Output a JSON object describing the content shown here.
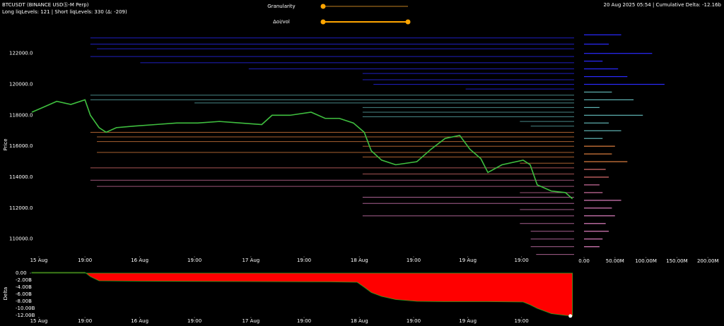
{
  "header": {
    "symbol": "BTCUSDT (BINANCE USDⓈ-M Perp)",
    "levels_info": "Long liqLevels: 121 | Short liqLevels: 330 (Δ: -209)",
    "granularity_label": "Granularity",
    "oi_label": "Δoi/vol",
    "status": "20 Aug 2025 05:54 | Cumulative Delta: -12.16b"
  },
  "chart_data": [
    {
      "type": "line",
      "ylabel": "Price",
      "color": "#3fbf3f",
      "x": [
        0,
        2.0,
        4.6,
        7.2,
        9.8,
        10.8,
        12.4,
        13.7,
        15.6,
        18.9,
        22.8,
        26.7,
        30.6,
        34.6,
        38.5,
        42.4,
        44.3,
        47.6,
        51.5,
        54.1,
        56.7,
        59.3,
        61.3,
        62.6,
        64.5,
        67.1,
        71.0,
        73.6,
        76.2,
        78.9,
        80.8,
        82.8,
        84.1,
        86.7,
        90.6,
        91.9,
        93.2,
        95.8,
        98.4,
        99.7
      ],
      "values": [
        118200,
        118500,
        118900,
        118700,
        119000,
        118000,
        117200,
        116900,
        117200,
        117300,
        117400,
        117500,
        117500,
        117600,
        117500,
        117400,
        118000,
        118000,
        118200,
        117800,
        117800,
        117500,
        116900,
        115700,
        115100,
        114800,
        115000,
        115800,
        116500,
        116700,
        115800,
        115200,
        114300,
        114800,
        115100,
        114800,
        113500,
        113100,
        113000,
        112600
      ],
      "xlim": [
        0,
        100
      ],
      "xticks": [
        {
          "value": 1.3,
          "label": "15 Aug"
        },
        {
          "value": 9.8,
          "label": "19:00"
        },
        {
          "value": 19.9,
          "label": "16 Aug"
        },
        {
          "value": 30.0,
          "label": "19:00"
        },
        {
          "value": 40.4,
          "label": "17 Aug"
        },
        {
          "value": 50.2,
          "label": "19:00"
        },
        {
          "value": 60.4,
          "label": "18 Aug"
        },
        {
          "value": 70.4,
          "label": "19:00"
        },
        {
          "value": 80.4,
          "label": "19 Aug"
        },
        {
          "value": 90.3,
          "label": "19:00"
        }
      ],
      "ylim": [
        108800,
        123400
      ],
      "yticks": [
        {
          "value": 110000,
          "label": "110000.0"
        },
        {
          "value": 112000,
          "label": "112000.0"
        },
        {
          "value": 114000,
          "label": "114000.0"
        },
        {
          "value": 116000,
          "label": "116000.0"
        },
        {
          "value": 118000,
          "label": "118000.0"
        },
        {
          "value": 120000,
          "label": "120000.0"
        },
        {
          "value": 122000,
          "label": "122000.0"
        }
      ],
      "levels": {
        "prices": [
          123000,
          122600,
          122300,
          121800,
          121400,
          121000,
          120700,
          120300,
          120000,
          119700,
          119300,
          119000,
          118800,
          118500,
          118200,
          117900,
          117600,
          117300,
          116900,
          116600,
          116300,
          116000,
          115600,
          115300,
          114900,
          114600,
          114200,
          113800,
          113400,
          113000,
          112700,
          112300,
          111900,
          111500,
          111000,
          110500,
          110000,
          109500,
          109000
        ],
        "x": [
          10.8,
          10.8,
          12,
          10.8,
          20,
          40,
          61,
          61,
          63,
          80,
          10.8,
          10.8,
          30,
          61,
          61,
          61,
          90,
          92,
          10.8,
          12,
          12,
          61,
          12,
          61,
          90,
          10.8,
          61,
          10.8,
          12,
          90,
          61,
          61,
          90,
          61,
          90,
          92,
          92,
          92,
          93
        ],
        "colors": [
          "#2a2aff",
          "#2a2aff",
          "#2a2aff",
          "#2a2aff",
          "#2a2aff",
          "#2a2aff",
          "#2a2aff",
          "#2a2aff",
          "#2a2aff",
          "#2a2aff",
          "#5fb3b3",
          "#5fb3b3",
          "#5fb3b3",
          "#5fb3b3",
          "#5fb3b3",
          "#5fb3b3",
          "#5fb3b3",
          "#5fb3b3",
          "#e08040",
          "#e08040",
          "#e08040",
          "#e08040",
          "#e08040",
          "#e08040",
          "#e08040",
          "#e07070",
          "#e07070",
          "#d070a0",
          "#d070a0",
          "#d070a0",
          "#e080c0",
          "#e080c0",
          "#e080c0",
          "#e080c0",
          "#e080c0",
          "#e080c0",
          "#e080c0",
          "#e080c0",
          "#e080c0"
        ]
      }
    },
    {
      "type": "hbar",
      "y": [
        123200,
        122600,
        122000,
        121500,
        121000,
        120500,
        120000,
        119500,
        119000,
        118500,
        118000,
        117500,
        117000,
        116500,
        116000,
        115500,
        115000,
        114500,
        114000,
        113500,
        113000,
        112500,
        112000,
        111500,
        111000,
        110500,
        110000,
        109500
      ],
      "values": [
        60000000,
        40000000,
        110000000,
        30000000,
        55000000,
        70000000,
        130000000,
        45000000,
        80000000,
        25000000,
        95000000,
        40000000,
        60000000,
        30000000,
        50000000,
        45000000,
        70000000,
        35000000,
        40000000,
        25000000,
        30000000,
        60000000,
        45000000,
        50000000,
        35000000,
        40000000,
        30000000,
        25000000
      ],
      "colors": [
        "#2a2aff",
        "#2a2aff",
        "#2a2aff",
        "#2a2aff",
        "#2a2aff",
        "#2a2aff",
        "#2a2aff",
        "#5fb3b3",
        "#5fb3b3",
        "#5fb3b3",
        "#5fb3b3",
        "#5fb3b3",
        "#5fb3b3",
        "#5fb3b3",
        "#e08040",
        "#e08040",
        "#e08040",
        "#e07070",
        "#e07070",
        "#d070a0",
        "#d070a0",
        "#e080c0",
        "#e080c0",
        "#e080c0",
        "#e080c0",
        "#e080c0",
        "#e080c0",
        "#e080c0"
      ],
      "xlim": [
        0,
        210000000
      ],
      "xticks": [
        {
          "value": 0,
          "label": "0.00"
        },
        {
          "value": 50000000,
          "label": "50.00M"
        },
        {
          "value": 100000000,
          "label": "100.00M"
        },
        {
          "value": 150000000,
          "label": "150.00M"
        },
        {
          "value": 200000000,
          "label": "200.00M"
        }
      ],
      "ylim": [
        108800,
        123400
      ]
    },
    {
      "type": "area",
      "ylabel": "Delta",
      "color": "#ff0000",
      "line_color": "#22aa22",
      "x": [
        0,
        9.8,
        10.8,
        12.4,
        20,
        40,
        55,
        60,
        61.3,
        62.6,
        64.5,
        67.1,
        71,
        76,
        84,
        90.6,
        91.9,
        93.2,
        95.8,
        98.4,
        99.7
      ],
      "values": [
        200000000,
        200000000,
        -1000000000,
        -2200000000,
        -2300000000,
        -2400000000,
        -2500000000,
        -2600000000,
        -4000000000,
        -5500000000,
        -6600000000,
        -7500000000,
        -8000000000,
        -8100000000,
        -8100000000,
        -8200000000,
        -9000000000,
        -10000000000,
        -11500000000,
        -12000000000,
        -12160000000
      ],
      "xlim": [
        0,
        100
      ],
      "xticks": [
        {
          "value": 1.3,
          "label": "15 Aug"
        },
        {
          "value": 9.8,
          "label": "19:00"
        },
        {
          "value": 19.9,
          "label": "16 Aug"
        },
        {
          "value": 30.0,
          "label": "19:00"
        },
        {
          "value": 40.4,
          "label": "17 Aug"
        },
        {
          "value": 50.2,
          "label": "19:00"
        },
        {
          "value": 60.4,
          "label": "18 Aug"
        },
        {
          "value": 70.4,
          "label": "19:00"
        },
        {
          "value": 80.4,
          "label": "19 Aug"
        },
        {
          "value": 90.3,
          "label": "19:00"
        }
      ],
      "ylim": [
        -13000000000,
        800000000
      ],
      "yticks": [
        {
          "value": 0,
          "label": "0.00"
        },
        {
          "value": -2000000000,
          "label": "-2.00B"
        },
        {
          "value": -4000000000,
          "label": "-4.00B"
        },
        {
          "value": -6000000000,
          "label": "-6.00B"
        },
        {
          "value": -8000000000,
          "label": "-8.00B"
        },
        {
          "value": -10000000000,
          "label": "-10.00B"
        },
        {
          "value": -12000000000,
          "label": "-12.00B"
        }
      ]
    }
  ]
}
